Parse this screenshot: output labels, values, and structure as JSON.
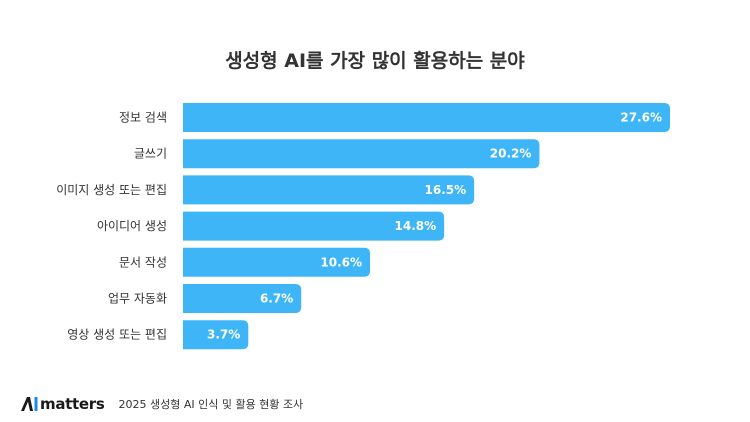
{
  "chart_data": {
    "type": "bar",
    "orientation": "horizontal",
    "title": "생성형 AI를 가장 많이 활용하는 분야",
    "categories": [
      "정보 검색",
      "글쓰기",
      "이미지 생성 또는 편집",
      "아이디어 생성",
      "문서 작성",
      "업무 자동화",
      "영상 생성 또는 편집"
    ],
    "values": [
      27.6,
      20.2,
      16.5,
      14.8,
      10.6,
      6.7,
      3.7
    ],
    "value_labels": [
      "27.6%",
      "20.2%",
      "16.5%",
      "14.8%",
      "10.6%",
      "6.7%",
      "3.7%"
    ],
    "unit": "%",
    "bar_color": "#3db5f7",
    "label_color": "#ffffff",
    "grid": false,
    "legend": "none"
  },
  "footer": {
    "logo_text": "matters",
    "logo_mark": "AI",
    "source": "2025 생성형 AI 인식 및 활용 현황 조사"
  }
}
